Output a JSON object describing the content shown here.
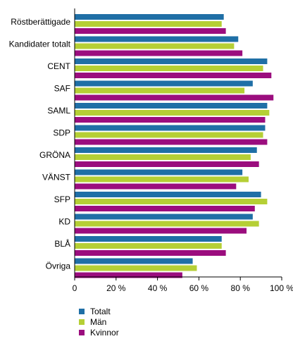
{
  "chart_data": {
    "type": "bar",
    "orientation": "horizontal",
    "categories": [
      "Röstberättigade",
      "Kandidater totalt",
      "CENT",
      "SAF",
      "SAML",
      "SDP",
      "GRÖNA",
      "VÄNST",
      "SFP",
      "KD",
      "BLÅ",
      "Övriga"
    ],
    "series": [
      {
        "name": "Totalt",
        "color": "#1f6fa6",
        "values": [
          72,
          79,
          93,
          86,
          93,
          92,
          88,
          81,
          90,
          86,
          71,
          57
        ]
      },
      {
        "name": "Män",
        "color": "#b5cf35",
        "values": [
          71,
          77,
          91,
          82,
          94,
          91,
          85,
          84,
          93,
          89,
          71,
          59
        ]
      },
      {
        "name": "Kvinnor",
        "color": "#9b0d7e",
        "values": [
          73,
          81,
          95,
          96,
          92,
          93,
          89,
          78,
          87,
          83,
          73,
          52
        ]
      }
    ],
    "xlim": [
      0,
      100
    ],
    "xticks": [
      "0",
      "20 %",
      "40 %",
      "60 %",
      "80 %",
      "100 %"
    ],
    "legend_position": "bottom-left",
    "grid": false
  }
}
